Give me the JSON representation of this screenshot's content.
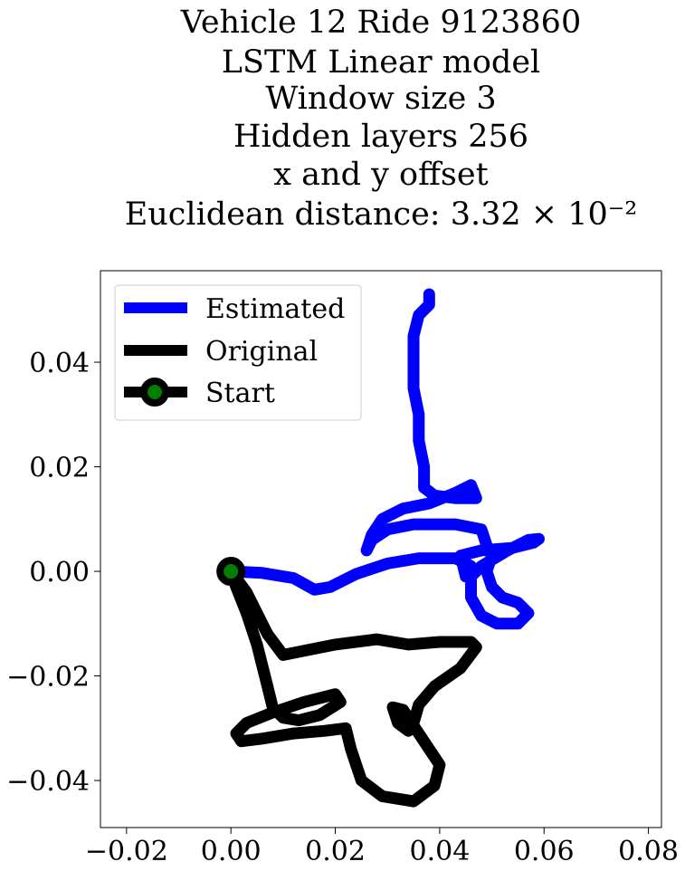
{
  "chart_data": {
    "type": "line",
    "title_lines": [
      "Vehicle 12 Ride 9123860",
      "LSTM Linear model",
      "Window size 3",
      "Hidden layers 256",
      "x and y offset",
      "Euclidean distance: 3.32 × 10⁻²"
    ],
    "xlabel": "",
    "ylabel": "",
    "xlim": [
      -0.025,
      0.0825
    ],
    "ylim": [
      -0.049,
      0.0575
    ],
    "xticks": [
      -0.02,
      0.0,
      0.02,
      0.04,
      0.06,
      0.08
    ],
    "xtick_labels": [
      "−0.02",
      "0.00",
      "0.02",
      "0.04",
      "0.06",
      "0.08"
    ],
    "yticks": [
      -0.04,
      -0.02,
      0.0,
      0.02,
      0.04
    ],
    "ytick_labels": [
      "−0.04",
      "−0.02",
      "0.00",
      "0.02",
      "0.04"
    ],
    "grid": false,
    "legend_position": "top-left",
    "legend": [
      "Estimated",
      "Original",
      "Start"
    ],
    "series": [
      {
        "name": "Estimated",
        "color": "#0000ff",
        "points": [
          [
            0.0,
            0.0
          ],
          [
            0.006,
            -0.0003
          ],
          [
            0.012,
            -0.0013
          ],
          [
            0.016,
            -0.0035
          ],
          [
            0.019,
            -0.003
          ],
          [
            0.024,
            -0.0005
          ],
          [
            0.03,
            0.0015
          ],
          [
            0.036,
            0.0025
          ],
          [
            0.043,
            0.0025
          ],
          [
            0.046,
            0.001
          ],
          [
            0.045,
            -0.001
          ],
          [
            0.044,
            0.003
          ],
          [
            0.048,
            0.004
          ],
          [
            0.054,
            0.0045
          ],
          [
            0.058,
            0.0055
          ],
          [
            0.059,
            0.0062
          ],
          [
            0.057,
            0.006
          ],
          [
            0.053,
            0.004
          ],
          [
            0.048,
            0.001
          ],
          [
            0.046,
            -0.001
          ],
          [
            0.046,
            -0.005
          ],
          [
            0.048,
            -0.0085
          ],
          [
            0.051,
            -0.01
          ],
          [
            0.055,
            -0.01
          ],
          [
            0.057,
            -0.008
          ],
          [
            0.055,
            -0.006
          ],
          [
            0.052,
            -0.005
          ],
          [
            0.05,
            -0.003
          ],
          [
            0.049,
            0.0
          ],
          [
            0.05,
            0.003
          ],
          [
            0.049,
            0.005
          ],
          [
            0.048,
            0.008
          ],
          [
            0.043,
            0.009
          ],
          [
            0.035,
            0.009
          ],
          [
            0.03,
            0.008
          ],
          [
            0.027,
            0.006
          ],
          [
            0.026,
            0.004
          ],
          [
            0.027,
            0.007
          ],
          [
            0.029,
            0.01
          ],
          [
            0.033,
            0.012
          ],
          [
            0.038,
            0.013
          ],
          [
            0.043,
            0.015
          ],
          [
            0.046,
            0.0165
          ],
          [
            0.047,
            0.014
          ],
          [
            0.043,
            0.014
          ],
          [
            0.039,
            0.0145
          ],
          [
            0.037,
            0.016
          ],
          [
            0.037,
            0.02
          ],
          [
            0.036,
            0.025
          ],
          [
            0.036,
            0.03
          ],
          [
            0.035,
            0.035
          ],
          [
            0.035,
            0.04
          ],
          [
            0.035,
            0.045
          ],
          [
            0.036,
            0.049
          ],
          [
            0.038,
            0.051
          ],
          [
            0.038,
            0.053
          ]
        ]
      },
      {
        "name": "Original",
        "color": "#000000",
        "points": [
          [
            0.0,
            0.0
          ],
          [
            0.003,
            -0.004
          ],
          [
            0.005,
            -0.008
          ],
          [
            0.007,
            -0.012
          ],
          [
            0.01,
            -0.016
          ],
          [
            0.02,
            -0.014
          ],
          [
            0.028,
            -0.013
          ],
          [
            0.034,
            -0.014
          ],
          [
            0.04,
            -0.0135
          ],
          [
            0.046,
            -0.0135
          ],
          [
            0.047,
            -0.0145
          ],
          [
            0.044,
            -0.0185
          ],
          [
            0.039,
            -0.022
          ],
          [
            0.036,
            -0.0255
          ],
          [
            0.035,
            -0.029
          ],
          [
            0.034,
            -0.0305
          ],
          [
            0.032,
            -0.029
          ],
          [
            0.031,
            -0.026
          ],
          [
            0.033,
            -0.0265
          ],
          [
            0.035,
            -0.0295
          ],
          [
            0.038,
            -0.034
          ],
          [
            0.04,
            -0.037
          ],
          [
            0.039,
            -0.041
          ],
          [
            0.035,
            -0.044
          ],
          [
            0.029,
            -0.043
          ],
          [
            0.025,
            -0.04
          ],
          [
            0.023,
            -0.034
          ],
          [
            0.022,
            -0.03
          ],
          [
            0.018,
            -0.0305
          ],
          [
            0.012,
            -0.031
          ],
          [
            0.006,
            -0.032
          ],
          [
            0.002,
            -0.0325
          ],
          [
            0.001,
            -0.031
          ],
          [
            0.003,
            -0.029
          ],
          [
            0.008,
            -0.027
          ],
          [
            0.014,
            -0.025
          ],
          [
            0.02,
            -0.0235
          ],
          [
            0.021,
            -0.025
          ],
          [
            0.017,
            -0.0275
          ],
          [
            0.013,
            -0.0285
          ],
          [
            0.01,
            -0.028
          ],
          [
            0.008,
            -0.026
          ],
          [
            0.007,
            -0.022
          ],
          [
            0.006,
            -0.018
          ],
          [
            0.005,
            -0.014
          ],
          [
            0.003,
            -0.008
          ],
          [
            0.001,
            -0.003
          ],
          [
            0.0,
            0.0
          ]
        ]
      }
    ],
    "start_point": {
      "name": "Start",
      "x": 0.0,
      "y": 0.0,
      "fill": "#008000",
      "edge": "#000000"
    }
  }
}
